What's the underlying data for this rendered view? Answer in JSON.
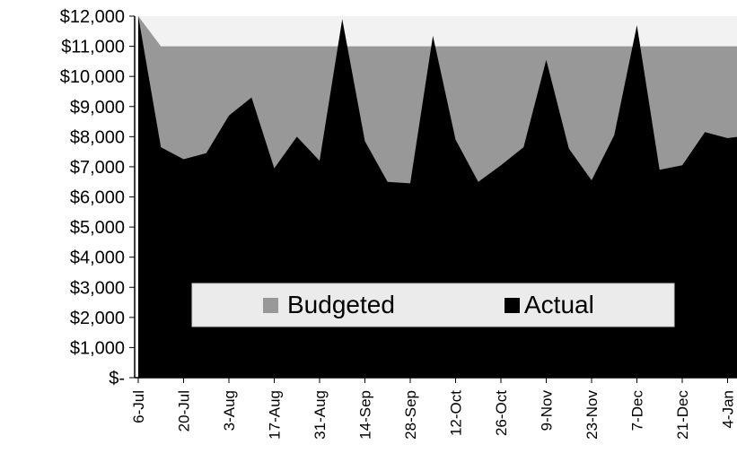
{
  "chart_data": {
    "type": "area",
    "x": [
      "6-Jul",
      "13-Jul",
      "20-Jul",
      "27-Jul",
      "3-Aug",
      "10-Aug",
      "17-Aug",
      "24-Aug",
      "31-Aug",
      "7-Sep",
      "14-Sep",
      "21-Sep",
      "28-Sep",
      "5-Oct",
      "12-Oct",
      "19-Oct",
      "26-Oct",
      "2-Nov",
      "9-Nov",
      "16-Nov",
      "23-Nov",
      "30-Nov",
      "7-Dec",
      "14-Dec",
      "21-Dec",
      "28-Dec",
      "4-Jan",
      "11-Jan"
    ],
    "x_tick_labels": [
      "6-Jul",
      "20-Jul",
      "3-Aug",
      "17-Aug",
      "31-Aug",
      "14-Sep",
      "28-Sep",
      "12-Oct",
      "26-Oct",
      "9-Nov",
      "23-Nov",
      "7-Dec",
      "21-Dec",
      "4-Jan"
    ],
    "series": [
      {
        "name": "Budgeted",
        "color": "#989898",
        "values": [
          12000,
          11000,
          11000,
          11000,
          11000,
          11000,
          11000,
          11000,
          11000,
          11000,
          11000,
          11000,
          11000,
          11000,
          11000,
          11000,
          11000,
          11000,
          11000,
          11000,
          11000,
          11000,
          11000,
          11000,
          11000,
          11000,
          11000,
          11000
        ]
      },
      {
        "name": "Actual",
        "color": "#000000",
        "values": [
          12000,
          7650,
          7250,
          7450,
          8700,
          9300,
          6950,
          8000,
          7200,
          11900,
          7850,
          6500,
          6450,
          11350,
          7900,
          6500,
          7050,
          7650,
          10550,
          7600,
          6550,
          8050,
          11700,
          6900,
          7050,
          8150,
          7950,
          8050
        ]
      }
    ],
    "ylim": [
      0,
      12000
    ],
    "y_ticks": [
      0,
      1000,
      2000,
      3000,
      4000,
      5000,
      6000,
      7000,
      8000,
      9000,
      10000,
      11000,
      12000
    ],
    "y_tick_labels": [
      "$-",
      "$1,000",
      "$2,000",
      "$3,000",
      "$4,000",
      "$5,000",
      "$6,000",
      "$7,000",
      "$8,000",
      "$9,000",
      "$10,000",
      "$11,000",
      "$12,000"
    ],
    "grid": false,
    "legend": {
      "position": "bottom-center",
      "items": [
        "Budgeted",
        "Actual"
      ]
    },
    "title": "",
    "xlabel": "",
    "ylabel": ""
  }
}
